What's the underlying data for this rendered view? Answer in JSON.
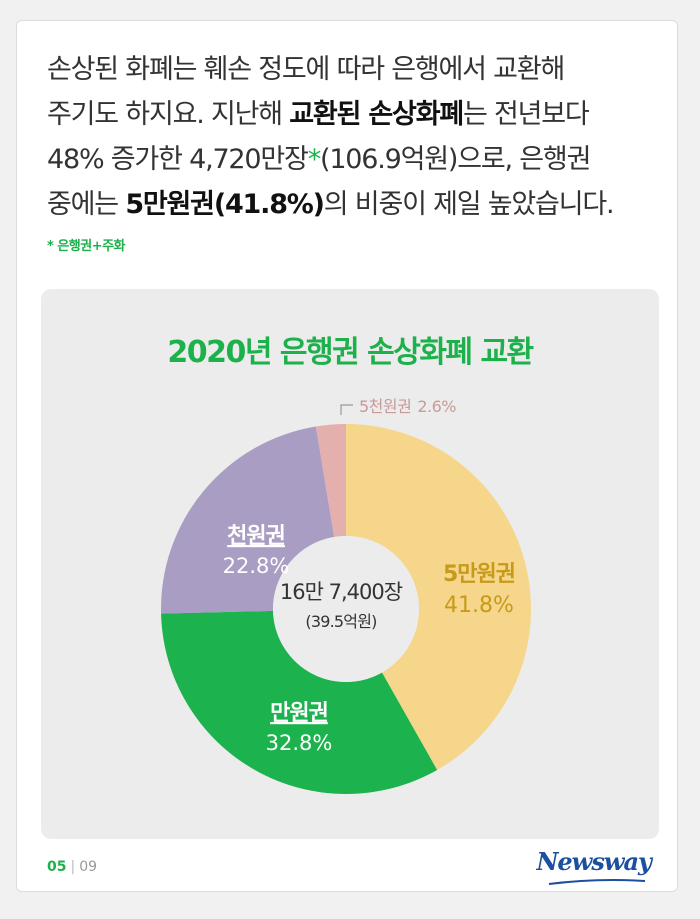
{
  "intro": {
    "l1": "손상된 화폐는 훼손 정도에 따라 은행에서 교환해",
    "l2a": "주기도 하지요. 지난해 ",
    "l2b": "교환된 손상화폐",
    "l2c": "는 전년보다",
    "l3a": "48% 증가한 4,720만장",
    "l3mark": "*",
    "l3b": "(106.9억원)으로, 은행권",
    "l4a": "중에는 ",
    "l4b": "5만원권(41.8%)",
    "l4c": "의 비중이 제일 높았습니다."
  },
  "footnote": "* 은행권+주화",
  "chart_data": {
    "type": "pie",
    "title": "2020년 은행권 손상화폐 교환",
    "center": {
      "total": "16만 7,400장",
      "amount": "(39.5억원)"
    },
    "slices": [
      {
        "label": "5만원권",
        "value": 41.8,
        "value_label": "41.8%",
        "color": "#f6d68a",
        "label_color": "#c79a1a"
      },
      {
        "label": "만원권",
        "value": 32.8,
        "value_label": "32.8%",
        "color": "#1cb34e",
        "label_color": "#ffffff"
      },
      {
        "label": "천원권",
        "value": 22.8,
        "value_label": "22.8%",
        "color": "#a99dc3",
        "label_color": "#ffffff"
      },
      {
        "label": "5천원권",
        "value": 2.6,
        "value_label": "2.6%",
        "color": "#e4b0ad",
        "label_color": "#c99a98"
      }
    ]
  },
  "footer": {
    "page": "05",
    "separator": "|",
    "total": "09"
  },
  "brand": "Newsway",
  "colors": {
    "accent": "#1db14b",
    "brand": "#1c4fa0",
    "panel": "#ececec"
  }
}
